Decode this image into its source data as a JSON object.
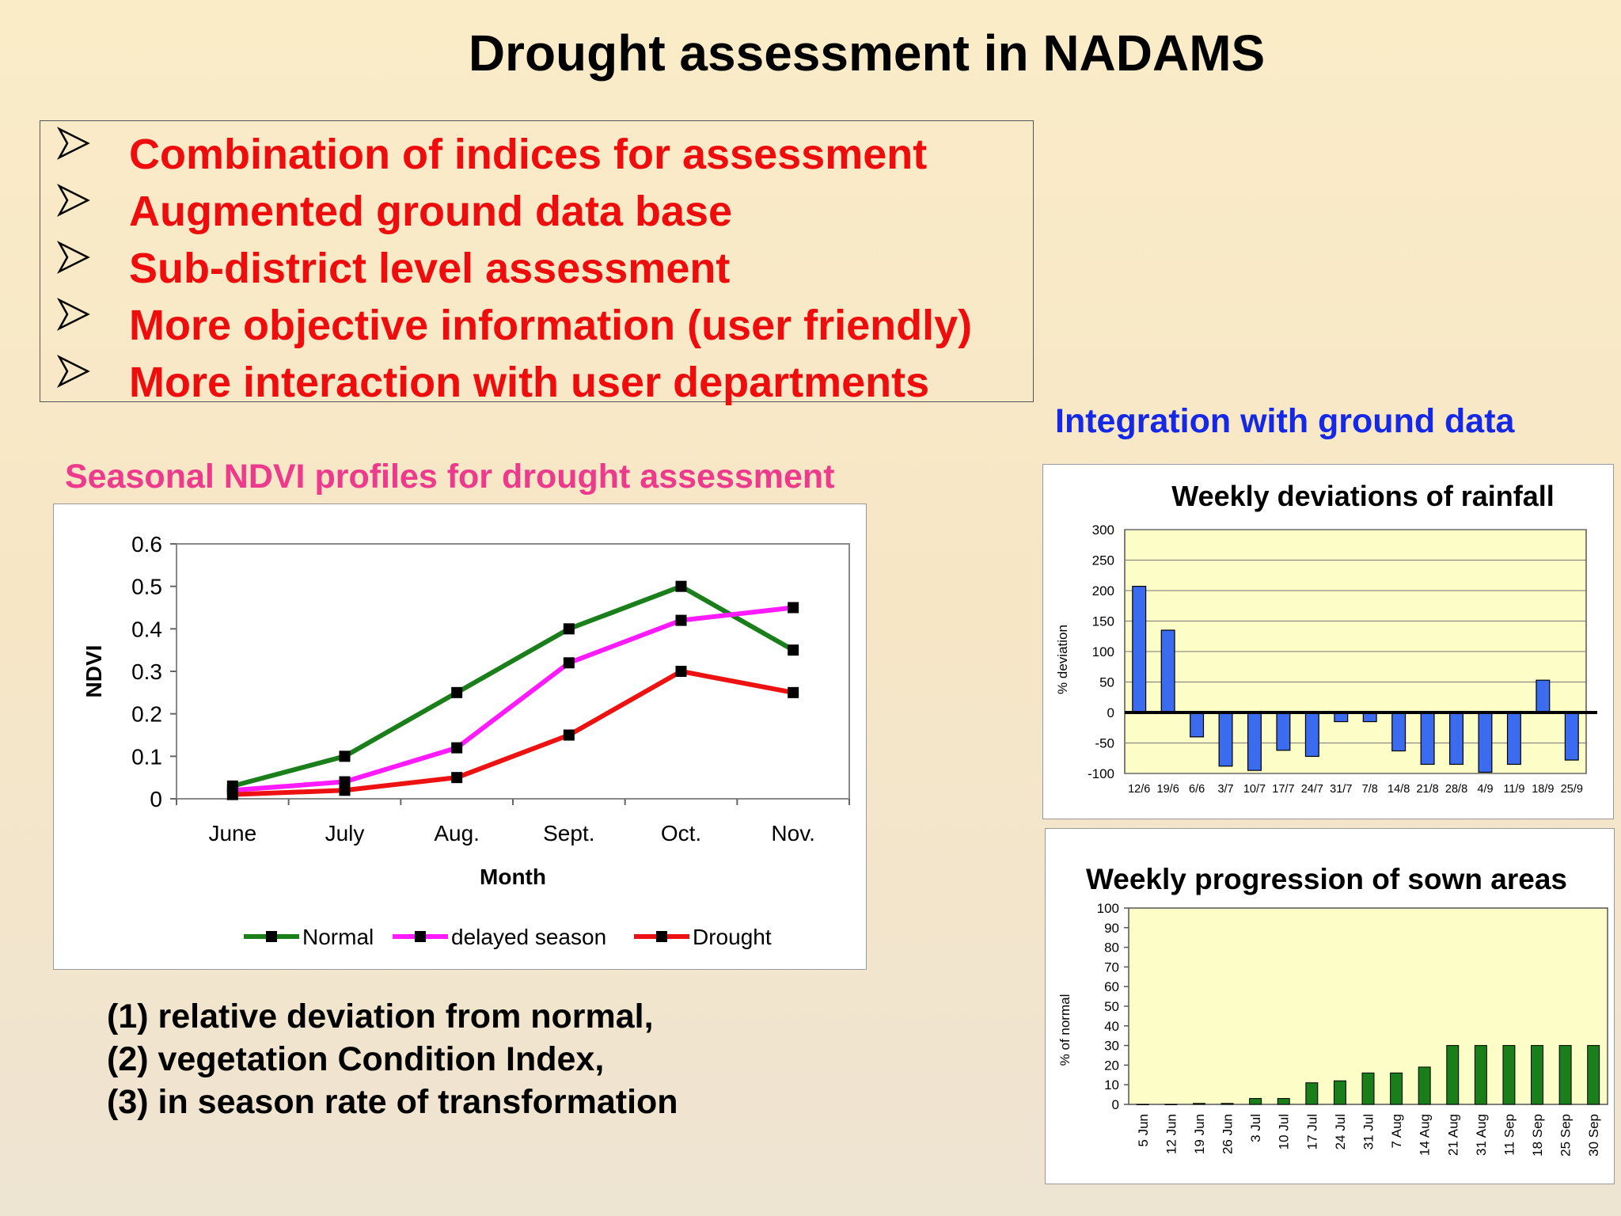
{
  "slide": {
    "title": "Drought assessment in NADAMS",
    "bullets": [
      "Combination of indices for assessment",
      "Augmented ground data base",
      "Sub-district level assessment",
      "More objective information (user friendly)",
      "More interaction with user departments"
    ],
    "ground_heading": "Integration with ground data",
    "ndvi_heading": "Seasonal NDVI profiles for drought assessment",
    "notes": [
      "(1) relative deviation from normal,",
      "(2) vegetation Condition Index,",
      "(3) in season rate of transformation"
    ]
  },
  "colors": {
    "bullet_text": "#ee0c0c",
    "ground_heading": "#1428e6",
    "ndvi_heading": "#ee3a8c",
    "normal": "#1a7f1a",
    "delayed": "#ff1aff",
    "drought": "#ee1111",
    "rain_bar": "#3b6cf0",
    "sown_bar": "#1a7f1a",
    "plot_bg": "#fdfdc8"
  },
  "chart_data": [
    {
      "id": "ndvi",
      "type": "line",
      "title": "",
      "xlabel": "Month",
      "ylabel": "NDVI",
      "categories": [
        "June",
        "July",
        "Aug.",
        "Sept.",
        "Oct.",
        "Nov."
      ],
      "ylim": [
        0,
        0.6
      ],
      "yticks": [
        "0",
        "0.1",
        "0.2",
        "0.3",
        "0.4",
        "0.5",
        "0.6"
      ],
      "legend": "bottom",
      "series": [
        {
          "name": "Normal",
          "color": "#1a7f1a",
          "values": [
            0.03,
            0.1,
            0.25,
            0.4,
            0.5,
            0.35
          ]
        },
        {
          "name": "delayed season",
          "color": "#ff1aff",
          "values": [
            0.02,
            0.04,
            0.12,
            0.32,
            0.42,
            0.45
          ]
        },
        {
          "name": "Drought",
          "color": "#ee1111",
          "values": [
            0.01,
            0.02,
            0.05,
            0.15,
            0.3,
            0.25
          ]
        }
      ]
    },
    {
      "id": "rainfall",
      "type": "bar",
      "title": "Weekly deviations of rainfall",
      "xlabel": "",
      "ylabel": "% deviation",
      "categories": [
        "12/6",
        "19/6",
        "6/6",
        "3/7",
        "10/7",
        "17/7",
        "24/7",
        "31/7",
        "7/8",
        "14/8",
        "21/8",
        "28/8",
        "4/9",
        "11/9",
        "18/9",
        "25/9"
      ],
      "values": [
        207,
        135,
        -40,
        -88,
        -95,
        -62,
        -72,
        -15,
        -15,
        -63,
        -85,
        -85,
        -98,
        -85,
        53,
        -78
      ],
      "ylim": [
        -100,
        300
      ],
      "yticks": [
        "300",
        "250",
        "200",
        "150",
        "100",
        "50",
        "0",
        "-50",
        "-100"
      ]
    },
    {
      "id": "sown",
      "type": "bar",
      "title": "Weekly progression of sown areas",
      "xlabel": "",
      "ylabel": "% of normal",
      "categories": [
        "5 Jun",
        "12 Jun",
        "19 Jun",
        "26 Jun",
        "3 Jul",
        "10 Jul",
        "17 Jul",
        "24 Jul",
        "31 Jul",
        "7 Aug",
        "14 Aug",
        "21 Aug",
        "31 Aug",
        "11 Sep",
        "18 Sep",
        "25 Sep",
        "30 Sep"
      ],
      "values": [
        0,
        0,
        0.5,
        0.5,
        3,
        3,
        11,
        12,
        16,
        16,
        19,
        30,
        30,
        30,
        30,
        30,
        30
      ],
      "ylim": [
        0,
        100
      ],
      "yticks": [
        "100",
        "90",
        "80",
        "70",
        "60",
        "50",
        "40",
        "30",
        "20",
        "10",
        "0"
      ]
    }
  ]
}
